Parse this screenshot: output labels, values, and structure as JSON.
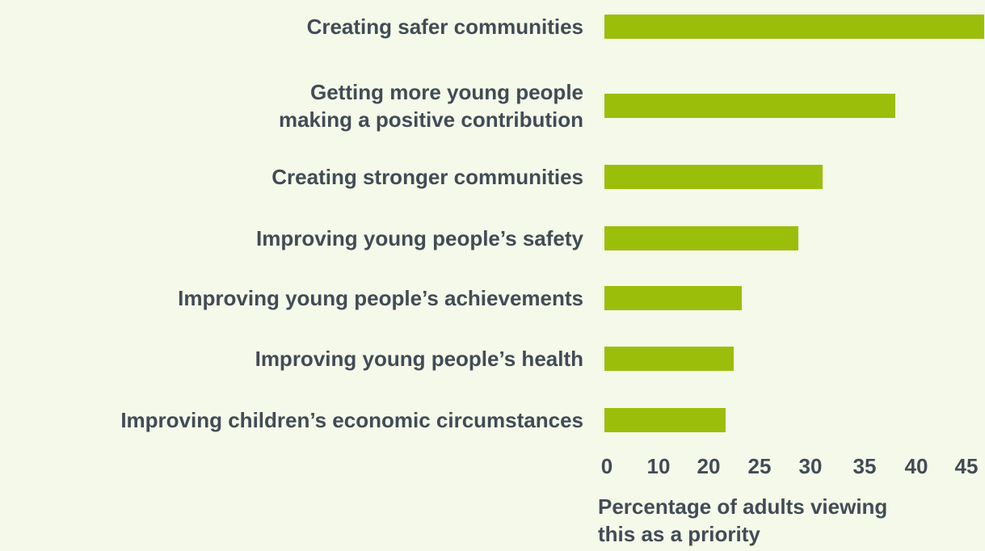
{
  "chart_data": {
    "type": "bar",
    "orientation": "horizontal",
    "categories": [
      "Creating safer communities",
      "Getting more young people\nmaking a positive contribution",
      "Creating stronger communities",
      "Improving young people’s safety",
      "Improving young people’s achievements",
      "Improving young people’s health",
      "Improving children’s economic circumstances"
    ],
    "values": [
      47,
      36,
      27,
      24,
      17,
      16,
      15
    ],
    "xlabel": "Percentage of adults viewing\nthis as a priority",
    "ylabel": "",
    "title": "",
    "xticks": [
      "0",
      "10",
      "20",
      "25",
      "30",
      "35",
      "40",
      "45"
    ],
    "xlim": [
      0,
      50
    ],
    "bar_color": "#9bbe0b",
    "grid": false,
    "legend": "none"
  }
}
